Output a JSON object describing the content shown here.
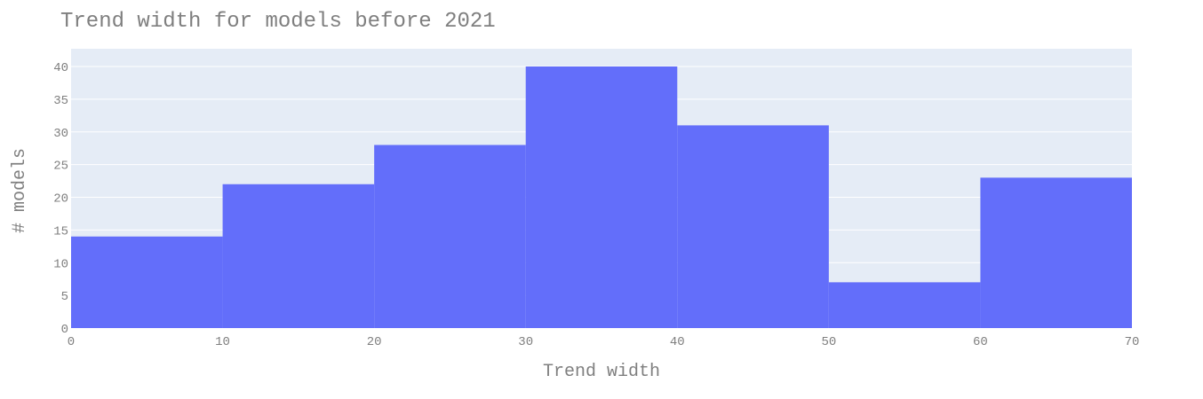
{
  "chart_data": {
    "type": "bar",
    "title": "Trend width for models before 2021",
    "xlabel": "Trend width",
    "ylabel": "# models",
    "bins": [
      {
        "x0": 0,
        "x1": 10,
        "value": 14
      },
      {
        "x0": 10,
        "x1": 20,
        "value": 22
      },
      {
        "x0": 20,
        "x1": 30,
        "value": 28
      },
      {
        "x0": 30,
        "x1": 40,
        "value": 40
      },
      {
        "x0": 40,
        "x1": 50,
        "value": 31
      },
      {
        "x0": 50,
        "x1": 60,
        "value": 7
      },
      {
        "x0": 60,
        "x1": 70,
        "value": 23
      }
    ],
    "xlim": [
      0,
      70
    ],
    "ylim": [
      0,
      40
    ],
    "x_ticks": [
      "0",
      "10",
      "20",
      "30",
      "40",
      "50",
      "60",
      "70"
    ],
    "y_ticks": [
      "0",
      "5",
      "10",
      "15",
      "20",
      "25",
      "30",
      "35",
      "40"
    ],
    "grid": true,
    "colors": {
      "bar": "#636efa",
      "plot_background": "#e5ecf6",
      "gridline": "#ffffff",
      "text": "#7f7f7f"
    }
  }
}
